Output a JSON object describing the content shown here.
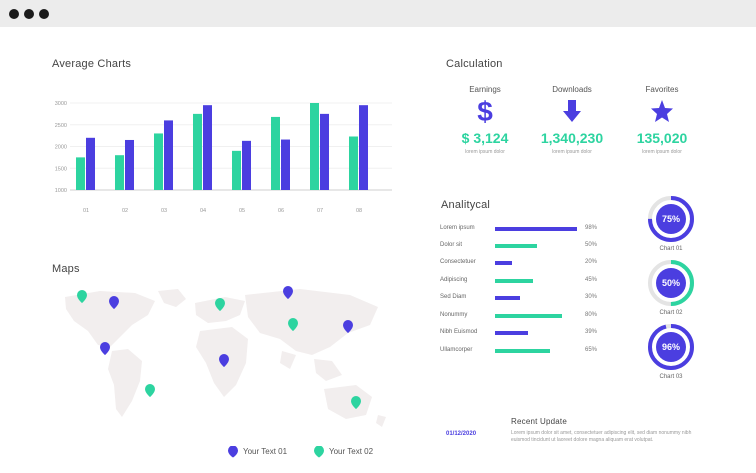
{
  "colors": {
    "purple": "#4b3ee0",
    "green": "#2dd4a0"
  },
  "average_charts": {
    "title": "Average Charts",
    "chart_data": {
      "type": "bar",
      "categories": [
        "01",
        "02",
        "03",
        "04",
        "05",
        "06",
        "07",
        "08"
      ],
      "yticks": [
        1000,
        1500,
        2000,
        2500,
        3000
      ],
      "ylim": [
        1000,
        3000
      ],
      "series": [
        {
          "color": "#2dd4a0",
          "values": [
            1750,
            1800,
            2300,
            2750,
            1900,
            2680,
            3000,
            2230
          ]
        },
        {
          "color": "#4b3ee0",
          "values": [
            2200,
            2150,
            2600,
            2950,
            2130,
            2160,
            2750,
            2950
          ]
        }
      ]
    }
  },
  "calculation": {
    "title": "Calculation",
    "stats": [
      {
        "label": "Earnings",
        "icon": "dollar-icon",
        "value": "$ 3,124",
        "sub": "lorem ipsum dolor"
      },
      {
        "label": "Downloads",
        "icon": "download-arrow-icon",
        "value": "1,340,230",
        "sub": "lorem ipsum dolor"
      },
      {
        "label": "Favorites",
        "icon": "star-icon",
        "value": "135,020",
        "sub": "lorem ipsum dolor"
      }
    ]
  },
  "analytical": {
    "title": "Analitycal",
    "rows": [
      {
        "label": "Lorem ipsum",
        "value": 98,
        "pct": "98%",
        "color": "#4b3ee0"
      },
      {
        "label": "Dolor sit",
        "value": 50,
        "pct": "50%",
        "color": "#2dd4a0"
      },
      {
        "label": "Consectetuer",
        "value": 20,
        "pct": "20%",
        "color": "#4b3ee0"
      },
      {
        "label": "Adipiscing",
        "value": 45,
        "pct": "45%",
        "color": "#2dd4a0"
      },
      {
        "label": "Sed Diam",
        "value": 30,
        "pct": "30%",
        "color": "#4b3ee0"
      },
      {
        "label": "Nonummy",
        "value": 80,
        "pct": "80%",
        "color": "#2dd4a0"
      },
      {
        "label": "Nibh Euismod",
        "value": 39,
        "pct": "39%",
        "color": "#4b3ee0"
      },
      {
        "label": "Ullamcorper",
        "value": 65,
        "pct": "65%",
        "color": "#2dd4a0"
      }
    ],
    "rings": [
      {
        "value": 75,
        "label": "75%",
        "caption": "Chart 01"
      },
      {
        "value": 50,
        "label": "50%",
        "caption": "Chart 02"
      },
      {
        "value": 96,
        "label": "96%",
        "caption": "Chart 03"
      }
    ]
  },
  "maps": {
    "title": "Maps",
    "legend": [
      {
        "label": "Your Text 01",
        "color": "#4b3ee0"
      },
      {
        "label": "Your Text 02",
        "color": "#2dd4a0"
      }
    ]
  },
  "recent_update": {
    "title": "Recent Update",
    "date": "01/12/2020",
    "text": "Lorem ipsum dolor sit amet, consectetuer adipiscing elit, sed diam nonummy nibh euismod tincidunt ut laoreet dolore magna aliquam erat volutpat."
  }
}
